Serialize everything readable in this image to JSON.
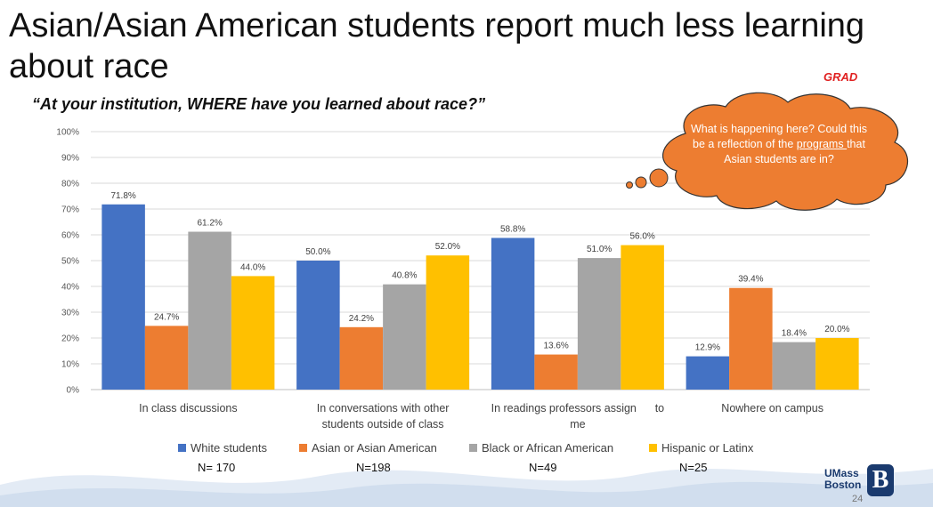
{
  "slide": {
    "title": "Asian/Asian American students report much less learning about race",
    "tag": "GRAD",
    "question": "“At your institution, WHERE have you learned about race?”",
    "page_number": "24"
  },
  "bubble": {
    "text_before": "What is happening here? Could this be a reflection of the ",
    "underlined": "programs ",
    "text_after": "that Asian students are in?",
    "color": "#ED7D31"
  },
  "logo": {
    "line1": "UMass",
    "line2": "Boston",
    "mark": "B"
  },
  "chart_data": {
    "type": "bar",
    "categories": [
      "In class discussions",
      "In conversations with other students outside of class",
      "In readings professors assign to me",
      "Nowhere on campus"
    ],
    "category_lines": [
      [
        "In class discussions"
      ],
      [
        "In conversations with other",
        "students outside of class"
      ],
      [
        "In readings professors assign      to",
        "me"
      ],
      [
        "Nowhere on campus"
      ]
    ],
    "series": [
      {
        "name": "White students",
        "color": "#4472C4",
        "values": [
          71.8,
          50.0,
          58.8,
          12.9
        ],
        "n_label": "N= 170"
      },
      {
        "name": "Asian or Asian American",
        "color": "#ED7D31",
        "values": [
          24.7,
          24.2,
          13.6,
          39.4
        ],
        "n_label": "N=198"
      },
      {
        "name": "Black or African American",
        "color": "#A5A5A5",
        "values": [
          61.2,
          40.8,
          51.0,
          18.4
        ],
        "n_label": "N=49"
      },
      {
        "name": "Hispanic or Latinx",
        "color": "#FFC000",
        "values": [
          44.0,
          52.0,
          56.0,
          20.0
        ],
        "n_label": "N=25"
      }
    ],
    "ylim": [
      0,
      100
    ],
    "yticks": [
      0,
      10,
      20,
      30,
      40,
      50,
      60,
      70,
      80,
      90,
      100
    ],
    "tick_suffix": "%",
    "value_format": "0.0%",
    "grid": true,
    "legend_position": "bottom"
  }
}
